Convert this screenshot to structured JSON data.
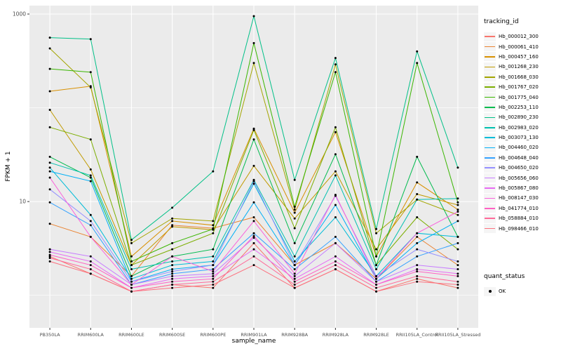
{
  "figure": {
    "background": "#FFFFFF",
    "panel_background": "#EBEBEB",
    "grid_color": "#FFFFFF",
    "tick_color": "#333333",
    "axis_text_color": "#4D4D4D",
    "point_color": "#000000"
  },
  "chart_data": {
    "type": "line",
    "title": "",
    "xlabel": "sample_name",
    "ylabel": "FPKM + 1",
    "y_scale": "log10",
    "y_ticks": [
      10,
      1000
    ],
    "y_minor_ticks": [
      1,
      100
    ],
    "ylim": [
      0.45,
      1230
    ],
    "legend_title": "tracking_id",
    "legend_position": "right",
    "grid": true,
    "categories": [
      "PB350LA",
      "RRIM600LA",
      "RRIM600LE",
      "RRIM600SE",
      "RRIM600PE",
      "RRIM901LA",
      "RRIM928BA",
      "RRIM928LA",
      "RRIM928LE",
      "RRII105LA_Control",
      "RRII105LA_Stressed"
    ],
    "series": [
      {
        "name": "Hb_000012_300",
        "color": "#F8766D",
        "values": [
          2.6,
          1.7,
          1.1,
          1.3,
          1.2,
          3.6,
          1.2,
          1.9,
          1.1,
          1.5,
          1.2
        ]
      },
      {
        "name": "Hb_000061_410",
        "color": "#EA8331",
        "values": [
          5.8,
          4.2,
          1.6,
          5.6,
          5.2,
          6.8,
          2.1,
          3.6,
          1.5,
          4.2,
          2.1
        ]
      },
      {
        "name": "Hb_000457_160",
        "color": "#D89000",
        "values": [
          150,
          170,
          2.6,
          6.2,
          5.6,
          60,
          7.6,
          55,
          2.6,
          16,
          8.2
        ]
      },
      {
        "name": "Hb_001268_230",
        "color": "#C09B00",
        "values": [
          95,
          22,
          2.1,
          5.4,
          5.0,
          24,
          6.6,
          21,
          3.1,
          12,
          9.2
        ]
      },
      {
        "name": "Hb_001668_030",
        "color": "#A3A500",
        "values": [
          430,
          165,
          3.6,
          6.6,
          6.2,
          300,
          8.2,
          290,
          4.6,
          10.5,
          7.2
        ]
      },
      {
        "name": "Hb_001767_020",
        "color": "#7CAE00",
        "values": [
          62,
          46,
          2.1,
          3.1,
          4.6,
          58,
          5.2,
          62,
          2.1,
          6.8,
          3.1
        ]
      },
      {
        "name": "Hb_001775_040",
        "color": "#39B600",
        "values": [
          260,
          240,
          2.3,
          3.6,
          5.1,
          490,
          8.8,
          240,
          2.6,
          300,
          9.8
        ]
      },
      {
        "name": "Hb_002253_110",
        "color": "#00BB4E",
        "values": [
          30,
          18,
          1.6,
          2.6,
          3.1,
          46,
          3.6,
          32,
          2.1,
          30,
          4.2
        ]
      },
      {
        "name": "Hb_002890_230",
        "color": "#00C087",
        "values": [
          560,
          540,
          3.9,
          8.6,
          21,
          950,
          17,
          340,
          5.1,
          400,
          23
        ]
      },
      {
        "name": "Hb_002983_020",
        "color": "#00C0AF",
        "values": [
          26,
          19,
          1.9,
          2.3,
          2.6,
          17,
          2.6,
          19,
          1.9,
          10.5,
          10.8
        ]
      },
      {
        "name": "Hb_003073_130",
        "color": "#00BCD8",
        "values": [
          23,
          7.2,
          1.5,
          2.1,
          2.3,
          15.5,
          2.3,
          6.8,
          1.6,
          4.6,
          4.2
        ]
      },
      {
        "name": "Hb_004460_020",
        "color": "#00B0F6",
        "values": [
          21,
          16.5,
          1.4,
          1.9,
          2.1,
          9.8,
          2.1,
          9.2,
          1.5,
          3.6,
          6.2
        ]
      },
      {
        "name": "Hb_004648_040",
        "color": "#35A2FF",
        "values": [
          9.8,
          5.6,
          1.3,
          1.7,
          1.9,
          4.6,
          1.9,
          4.2,
          1.4,
          2.6,
          3.6
        ]
      },
      {
        "name": "Hb_004650_020",
        "color": "#9590FF",
        "values": [
          13.5,
          6.2,
          1.4,
          1.8,
          2.1,
          16.5,
          2.1,
          11.5,
          1.6,
          3.1,
          2.3
        ]
      },
      {
        "name": "Hb_005656_060",
        "color": "#C77CFF",
        "values": [
          3.1,
          2.6,
          1.3,
          1.6,
          1.7,
          4.1,
          1.6,
          3.6,
          1.4,
          2.1,
          1.9
        ]
      },
      {
        "name": "Hb_005867_080",
        "color": "#E76BF3",
        "values": [
          2.9,
          2.3,
          1.2,
          1.5,
          1.6,
          3.1,
          1.5,
          2.6,
          1.3,
          1.9,
          1.7
        ]
      },
      {
        "name": "Hb_008147_030",
        "color": "#FA62DB",
        "values": [
          18,
          4.2,
          1.3,
          2.6,
          1.8,
          6.2,
          1.7,
          11.8,
          1.5,
          4.6,
          7.8
        ]
      },
      {
        "name": "Hb_041774_010",
        "color": "#FF61C3",
        "values": [
          2.7,
          2.1,
          1.2,
          1.4,
          1.5,
          4.3,
          1.4,
          2.3,
          1.3,
          1.8,
          1.6
        ]
      },
      {
        "name": "Hb_058884_010",
        "color": "#FF6A9A",
        "values": [
          2.5,
          1.9,
          1.1,
          1.3,
          1.4,
          2.6,
          1.3,
          2.1,
          1.2,
          1.6,
          1.4
        ]
      },
      {
        "name": "Hb_098466_010",
        "color": "#FC717F",
        "values": [
          2.3,
          1.7,
          1.1,
          1.2,
          1.3,
          2.1,
          1.2,
          1.9,
          1.1,
          1.4,
          1.3
        ]
      }
    ]
  },
  "quant_status": {
    "title": "quant_status",
    "items": [
      {
        "label": "OK",
        "symbol": "black-point"
      }
    ]
  }
}
